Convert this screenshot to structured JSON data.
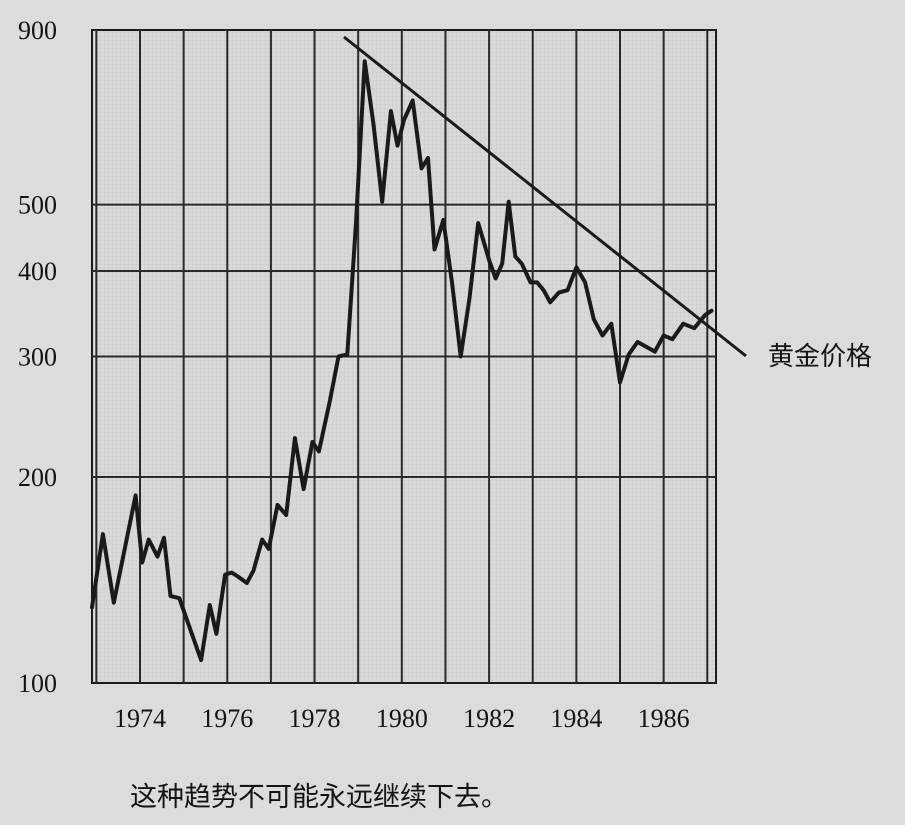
{
  "chart_data": {
    "type": "line",
    "title": "",
    "xlabel": "",
    "ylabel": "",
    "y_scale": "log",
    "ylim": [
      100,
      900
    ],
    "xlim": [
      1972.9,
      1987.2
    ],
    "y_ticks": [
      100,
      200,
      300,
      400,
      500,
      900
    ],
    "x_ticks": [
      1974,
      1976,
      1978,
      1980,
      1982,
      1984,
      1986
    ],
    "grid": true,
    "series": [
      {
        "name": "黄金价格",
        "x": [
          1972.9,
          1973.15,
          1973.4,
          1973.9,
          1974.05,
          1974.2,
          1974.4,
          1974.55,
          1974.7,
          1974.9,
          1975.4,
          1975.6,
          1975.75,
          1975.95,
          1976.1,
          1976.25,
          1976.45,
          1976.6,
          1976.8,
          1976.95,
          1977.15,
          1977.35,
          1977.55,
          1977.75,
          1977.95,
          1978.1,
          1978.35,
          1978.55,
          1978.75,
          1978.95,
          1979.15,
          1979.35,
          1979.55,
          1979.75,
          1979.9,
          1980.05,
          1980.25,
          1980.45,
          1980.6,
          1980.75,
          1980.95,
          1981.15,
          1981.35,
          1981.55,
          1981.75,
          1982.0,
          1982.15,
          1982.3,
          1982.45,
          1982.6,
          1982.75,
          1982.95,
          1983.1,
          1983.25,
          1983.4,
          1983.6,
          1983.8,
          1984.0,
          1984.2,
          1984.4,
          1984.6,
          1984.8,
          1985.0,
          1985.2,
          1985.4,
          1985.6,
          1985.8,
          1986.0,
          1986.2,
          1986.45,
          1986.7,
          1986.95,
          1987.1
        ],
        "y": [
          129,
          165,
          131,
          188,
          150,
          162,
          153,
          163,
          134,
          133,
          108,
          130,
          118,
          144,
          145,
          143,
          140,
          146,
          162,
          157,
          182,
          176,
          228,
          192,
          225,
          218,
          258,
          300,
          302,
          470,
          810,
          655,
          505,
          685,
          610,
          665,
          710,
          565,
          585,
          430,
          475,
          385,
          300,
          365,
          470,
          415,
          390,
          410,
          505,
          420,
          410,
          385,
          385,
          375,
          360,
          372,
          375,
          405,
          385,
          340,
          322,
          335,
          275,
          302,
          315,
          310,
          305,
          322,
          318,
          335,
          330,
          345,
          350
        ]
      }
    ]
  },
  "caption": "这种趋势不可能永远继续下去。"
}
